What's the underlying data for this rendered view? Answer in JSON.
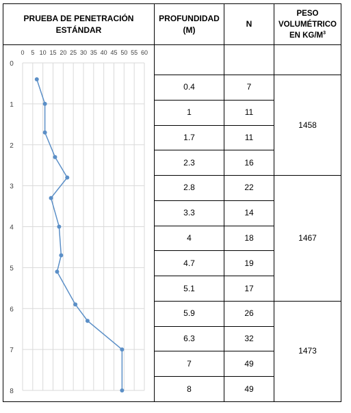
{
  "headers": {
    "test": "PRUEBA DE PENETRACIÓN ESTÁNDAR",
    "depth_line1": "PROFUNDIDAD",
    "depth_line2": "(M)",
    "n": "N",
    "weight_line1": "PESO",
    "weight_line2": "VOLUMÉTRICO",
    "weight_line3": "EN KG/M",
    "weight_sup": "3"
  },
  "rows": [
    {
      "depth": "0.4",
      "n": "7"
    },
    {
      "depth": "1",
      "n": "11"
    },
    {
      "depth": "1.7",
      "n": "11"
    },
    {
      "depth": "2.3",
      "n": "16"
    },
    {
      "depth": "2.8",
      "n": "22"
    },
    {
      "depth": "3.3",
      "n": "14"
    },
    {
      "depth": "4",
      "n": "18"
    },
    {
      "depth": "4.7",
      "n": "19"
    },
    {
      "depth": "5.1",
      "n": "17"
    },
    {
      "depth": "5.9",
      "n": "26"
    },
    {
      "depth": "6.3",
      "n": "32"
    },
    {
      "depth": "7",
      "n": "49"
    },
    {
      "depth": "8",
      "n": "49"
    }
  ],
  "weights": [
    {
      "value": "1458",
      "rows": [
        0,
        3
      ]
    },
    {
      "value": "1467",
      "rows": [
        4,
        8
      ]
    },
    {
      "value": "1473",
      "rows": [
        9,
        12
      ]
    }
  ],
  "chart_data": {
    "type": "line",
    "title": "",
    "xlabel": "",
    "ylabel": "",
    "xlim": [
      0,
      60
    ],
    "ylim": [
      0,
      8
    ],
    "x_ticks": [
      "0",
      "5",
      "10",
      "15",
      "20",
      "25",
      "30",
      "35",
      "40",
      "45",
      "50",
      "55",
      "60"
    ],
    "y_ticks": [
      "0",
      "1",
      "2",
      "3",
      "4",
      "5",
      "6",
      "7",
      "8"
    ],
    "y_axis_inverted": true,
    "x_axis_position": "top",
    "grid": true,
    "series": [
      {
        "color": "#5b8fc7",
        "points": [
          {
            "n": 7,
            "depth": 0.4
          },
          {
            "n": 11,
            "depth": 1
          },
          {
            "n": 11,
            "depth": 1.7
          },
          {
            "n": 16,
            "depth": 2.3
          },
          {
            "n": 22,
            "depth": 2.8
          },
          {
            "n": 14,
            "depth": 3.3
          },
          {
            "n": 18,
            "depth": 4
          },
          {
            "n": 19,
            "depth": 4.7
          },
          {
            "n": 17,
            "depth": 5.1
          },
          {
            "n": 26,
            "depth": 5.9
          },
          {
            "n": 32,
            "depth": 6.3
          },
          {
            "n": 49,
            "depth": 7
          },
          {
            "n": 49,
            "depth": 8
          }
        ]
      }
    ]
  }
}
